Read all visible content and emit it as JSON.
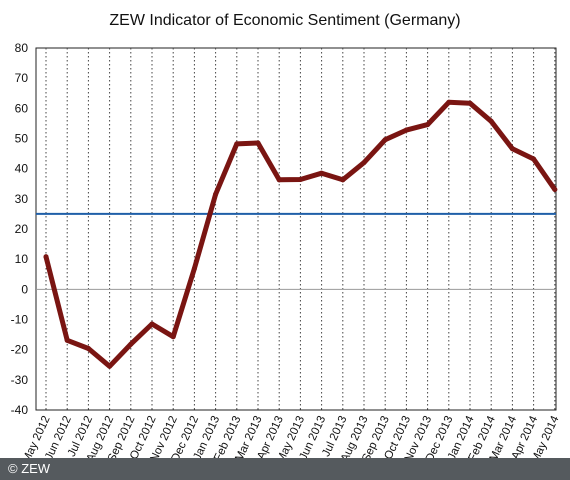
{
  "chart_data": {
    "type": "line",
    "title": "ZEW Indicator of Economic Sentiment (Germany)",
    "xlabel": "",
    "ylabel": "",
    "categories": [
      "May 2012",
      "Jun 2012",
      "Jul 2012",
      "Aug 2012",
      "Sep 2012",
      "Oct 2012",
      "Nov 2012",
      "Dec 2012",
      "Jan 2013",
      "Feb 2013",
      "Mar 2013",
      "Apr 2013",
      "May 2013",
      "Jun 2013",
      "Jul 2013",
      "Aug 2013",
      "Sep 2013",
      "Oct 2013",
      "Nov 2013",
      "Dec 2013",
      "Jan 2014",
      "Feb 2014",
      "Mar 2014",
      "Apr 2014",
      "May 2014"
    ],
    "series": [
      {
        "name": "",
        "values": [
          10.8,
          -16.9,
          -19.6,
          -25.5,
          -18.2,
          -11.5,
          -15.7,
          6.9,
          31.5,
          48.2,
          48.5,
          36.3,
          36.4,
          38.5,
          36.3,
          42.0,
          49.6,
          52.8,
          54.6,
          62.0,
          61.7,
          55.7,
          46.6,
          43.2,
          33.1
        ]
      }
    ],
    "reference_line": {
      "value": 25
    },
    "ylim": [
      -40,
      80
    ],
    "yticks": [
      -40,
      -30,
      -20,
      -10,
      0,
      10,
      20,
      30,
      40,
      50,
      60,
      70,
      80
    ],
    "grid": "vertical dotted",
    "colors": {
      "line": "#7a1512",
      "reference": "#1f5fa8",
      "zero": "#999999",
      "grid": "#444444"
    }
  },
  "footer": {
    "copyright": "© ZEW"
  }
}
